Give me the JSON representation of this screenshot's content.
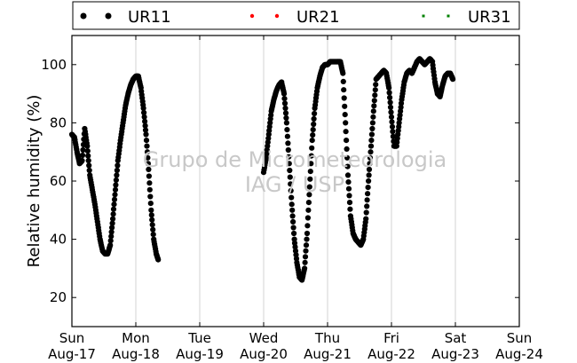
{
  "chart_data": {
    "type": "scatter",
    "title": "",
    "ylabel": "Relative humidity (%)",
    "xlabel": "",
    "ylim": [
      10,
      110
    ],
    "yticks": [
      20,
      40,
      60,
      80,
      100
    ],
    "xlim": [
      0,
      7
    ],
    "x_units": "days since Sun Aug-17 00:00",
    "xticks": [
      {
        "x": 0,
        "day": "Sun",
        "date": "Aug-17"
      },
      {
        "x": 1,
        "day": "Mon",
        "date": "Aug-18"
      },
      {
        "x": 2,
        "day": "Tue",
        "date": "Aug-19"
      },
      {
        "x": 3,
        "day": "Wed",
        "date": "Aug-20"
      },
      {
        "x": 4,
        "day": "Thu",
        "date": "Aug-21"
      },
      {
        "x": 5,
        "day": "Fri",
        "date": "Aug-22"
      },
      {
        "x": 6,
        "day": "Sat",
        "date": "Aug-23"
      },
      {
        "x": 7,
        "day": "Sun",
        "date": "Aug-24"
      }
    ],
    "grid": "vertical",
    "legend_position": "top",
    "watermark": [
      "Grupo de Micrometeorologia",
      "IAG / USP"
    ],
    "series": [
      {
        "name": "UR11",
        "color": "#000000",
        "marker": "circle",
        "points": [
          [
            0.0,
            76
          ],
          [
            0.04,
            75
          ],
          [
            0.08,
            70
          ],
          [
            0.12,
            66
          ],
          [
            0.16,
            67
          ],
          [
            0.2,
            78
          ],
          [
            0.24,
            72
          ],
          [
            0.28,
            62
          ],
          [
            0.32,
            57
          ],
          [
            0.36,
            52
          ],
          [
            0.4,
            46
          ],
          [
            0.44,
            40
          ],
          [
            0.48,
            36
          ],
          [
            0.52,
            35
          ],
          [
            0.56,
            35
          ],
          [
            0.6,
            38
          ],
          [
            0.64,
            47
          ],
          [
            0.68,
            57
          ],
          [
            0.72,
            67
          ],
          [
            0.76,
            74
          ],
          [
            0.8,
            80
          ],
          [
            0.84,
            86
          ],
          [
            0.88,
            90
          ],
          [
            0.92,
            93
          ],
          [
            0.96,
            95
          ],
          [
            1.0,
            96
          ],
          [
            1.04,
            96
          ],
          [
            1.08,
            92
          ],
          [
            1.12,
            85
          ],
          [
            1.16,
            76
          ],
          [
            1.2,
            64
          ],
          [
            1.24,
            50
          ],
          [
            1.28,
            40
          ],
          [
            1.32,
            35
          ],
          [
            1.35,
            33
          ]
        ]
      },
      {
        "name": "UR11",
        "color": "#000000",
        "marker": "circle",
        "points": [
          [
            3.0,
            63
          ],
          [
            3.04,
            68
          ],
          [
            3.08,
            76
          ],
          [
            3.12,
            84
          ],
          [
            3.16,
            88
          ],
          [
            3.2,
            91
          ],
          [
            3.24,
            93
          ],
          [
            3.28,
            94
          ],
          [
            3.32,
            90
          ],
          [
            3.36,
            80
          ],
          [
            3.4,
            66
          ],
          [
            3.44,
            52
          ],
          [
            3.48,
            40
          ],
          [
            3.52,
            32
          ],
          [
            3.56,
            27
          ],
          [
            3.6,
            26
          ],
          [
            3.64,
            30
          ],
          [
            3.68,
            42
          ],
          [
            3.72,
            58
          ],
          [
            3.76,
            74
          ],
          [
            3.8,
            85
          ],
          [
            3.84,
            92
          ],
          [
            3.88,
            96
          ],
          [
            3.92,
            99
          ],
          [
            3.96,
            100
          ],
          [
            4.0,
            100
          ],
          [
            4.04,
            101
          ],
          [
            4.08,
            101
          ],
          [
            4.12,
            101
          ],
          [
            4.16,
            101
          ],
          [
            4.2,
            101
          ],
          [
            4.24,
            97
          ],
          [
            4.28,
            80
          ],
          [
            4.32,
            62
          ],
          [
            4.36,
            48
          ],
          [
            4.4,
            42
          ],
          [
            4.44,
            40
          ],
          [
            4.48,
            39
          ],
          [
            4.52,
            38
          ],
          [
            4.56,
            40
          ],
          [
            4.6,
            47
          ],
          [
            4.64,
            60
          ],
          [
            4.68,
            72
          ],
          [
            4.72,
            84
          ],
          [
            4.76,
            95
          ],
          [
            4.8,
            96
          ],
          [
            4.84,
            97
          ],
          [
            4.88,
            98
          ],
          [
            4.92,
            97
          ],
          [
            4.96,
            92
          ],
          [
            5.0,
            82
          ],
          [
            5.04,
            72
          ],
          [
            5.08,
            72
          ],
          [
            5.12,
            80
          ],
          [
            5.16,
            88
          ],
          [
            5.2,
            94
          ],
          [
            5.24,
            97
          ],
          [
            5.28,
            98
          ],
          [
            5.32,
            97
          ],
          [
            5.36,
            99
          ],
          [
            5.4,
            101
          ],
          [
            5.44,
            102
          ],
          [
            5.48,
            101
          ],
          [
            5.52,
            100
          ],
          [
            5.56,
            101
          ],
          [
            5.6,
            102
          ],
          [
            5.64,
            101
          ],
          [
            5.68,
            94
          ],
          [
            5.72,
            90
          ],
          [
            5.76,
            89
          ],
          [
            5.8,
            93
          ],
          [
            5.84,
            96
          ],
          [
            5.88,
            97
          ],
          [
            5.92,
            97
          ],
          [
            5.96,
            95
          ]
        ]
      },
      {
        "name": "UR21",
        "color": "#ff0000",
        "marker": "circle",
        "points": []
      },
      {
        "name": "UR31",
        "color": "#008000",
        "marker": "square",
        "points": []
      }
    ]
  }
}
